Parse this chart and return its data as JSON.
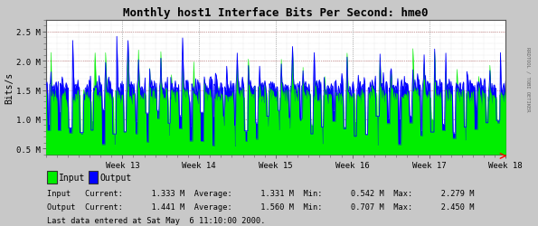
{
  "title": "Monthly host1 Interface Bits Per Second: hme0",
  "ylabel": "Bits/s",
  "bg_color": "#c8c8c8",
  "plot_bg_color": "#ffffff",
  "grid_major_color": "#aaaaaa",
  "grid_minor_color": "#cccccc",
  "input_color": "#00ee00",
  "output_color": "#0000ff",
  "red_line_color": "#cc0000",
  "week_labels": [
    "Week 13",
    "Week 14",
    "Week 15",
    "Week 16",
    "Week 17",
    "Week 18"
  ],
  "ylim_min": 400000,
  "ylim_max": 2700000,
  "yticks": [
    500000,
    1000000,
    1500000,
    2000000,
    2500000
  ],
  "ytick_labels": [
    "0.5 M",
    "1.0 M",
    "1.5 M",
    "2.0 M",
    "2.5 M"
  ],
  "legend_input": "Input",
  "legend_output": "Output",
  "stats_line1": "Input   Current:      1.333 M  Average:      1.331 M  Min:      0.542 M  Max:      2.279 M",
  "stats_line2": "Output  Current:      1.441 M  Average:      1.560 M  Min:      0.707 M  Max:      2.450 M",
  "last_data": "Last data entered at Sat May  6 11:10:00 2000.",
  "rrdtool_label": "RRDTOOL / TOBI OETIKER",
  "n_points": 700,
  "base_input": 1500000,
  "base_output": 1560000,
  "floor_input": 542000,
  "floor_output": 707000,
  "spike_max_input": 2279000,
  "spike_max_output": 2450000,
  "spikes_per_week": 7,
  "n_weeks": 6
}
